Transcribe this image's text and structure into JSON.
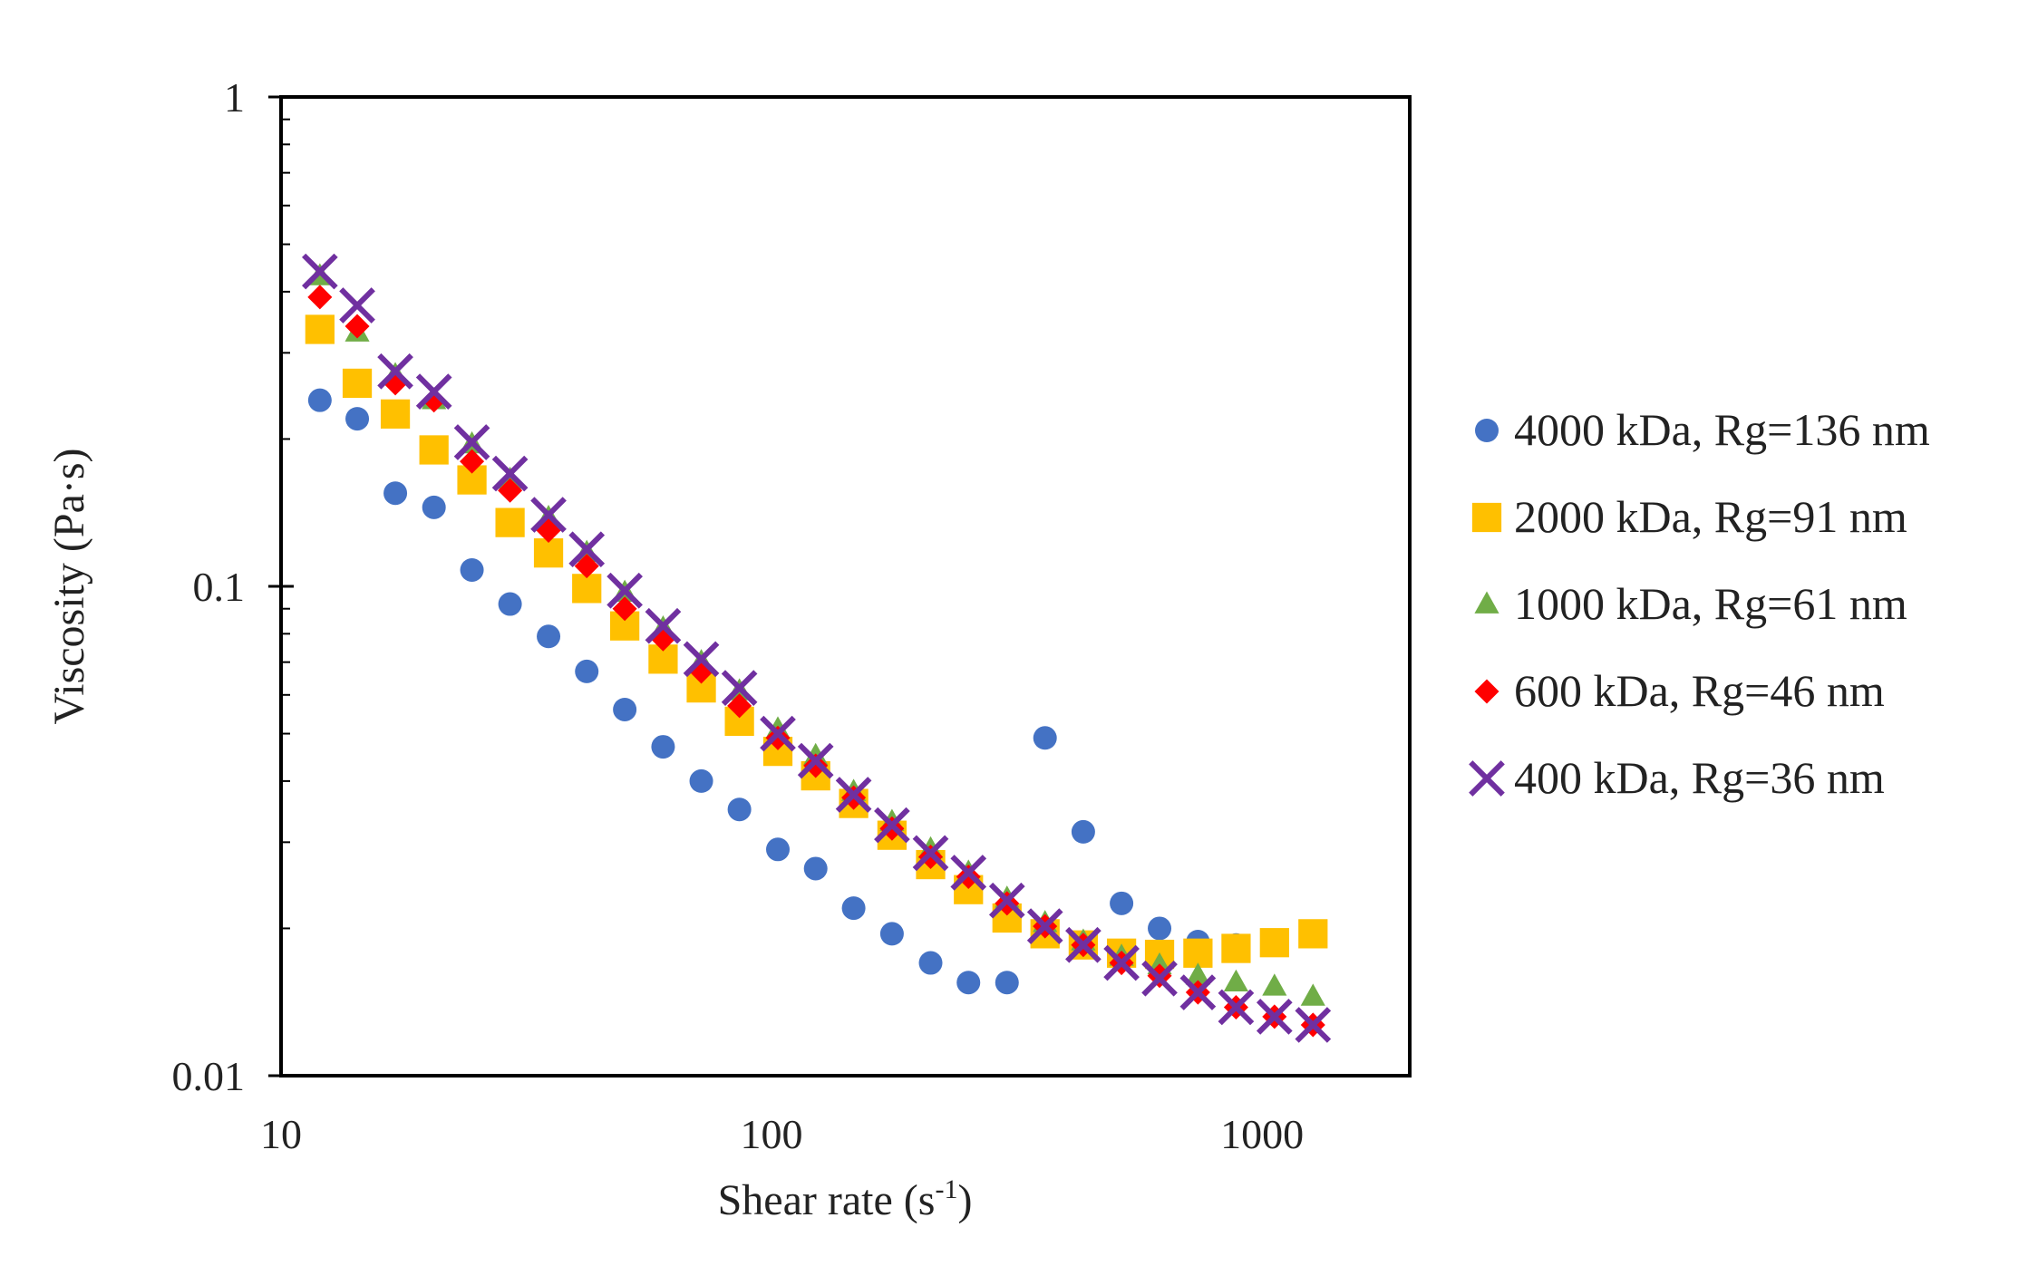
{
  "chart_data": {
    "type": "scatter",
    "title": "",
    "xlabel": "Shear rate (s",
    "xlabel_sup": "-1",
    "xlabel_close": ")",
    "ylabel": "Viscosity (Pa·s)",
    "xscale": "log",
    "yscale": "log",
    "xlim": [
      10,
      2000
    ],
    "ylim": [
      0.01,
      1
    ],
    "xticks": [
      10,
      100,
      1000
    ],
    "xtick_labels": [
      "10",
      "100",
      "1000"
    ],
    "yticks": [
      0.01,
      0.1,
      1
    ],
    "ytick_labels": [
      "0.01",
      "0.1",
      "1"
    ],
    "grid": false,
    "legend_position": "right",
    "x": [
      12,
      14.3,
      17.1,
      20.5,
      24.5,
      29.3,
      35.1,
      42,
      50.2,
      60.1,
      71.9,
      86,
      103,
      123,
      147,
      176,
      211,
      252,
      302,
      361,
      432,
      517,
      618,
      740,
      885,
      1060,
      1270
    ],
    "series": [
      {
        "name": "4000 kDa, Rg=136 nm",
        "color": "#4472C4",
        "marker": "circle",
        "values": [
          0.24,
          0.22,
          0.155,
          0.145,
          0.108,
          0.092,
          0.079,
          0.067,
          0.056,
          0.047,
          0.04,
          0.035,
          0.029,
          0.0265,
          0.022,
          0.0195,
          0.017,
          0.0155,
          0.0155,
          0.049,
          0.0315,
          0.0225,
          0.02,
          0.0188,
          0.0185,
          null,
          null
        ]
      },
      {
        "name": "2000 kDa, Rg=91 nm",
        "color": "#FFC000",
        "marker": "square",
        "values": [
          0.335,
          0.26,
          0.225,
          0.19,
          0.165,
          0.135,
          0.117,
          0.099,
          0.083,
          0.071,
          0.062,
          0.053,
          0.046,
          0.041,
          0.036,
          0.031,
          0.027,
          0.024,
          0.021,
          0.0195,
          0.0185,
          0.0178,
          0.0177,
          0.0178,
          0.0182,
          0.0187,
          0.0195
        ]
      },
      {
        "name": "1000 kDa, Rg=61 nm",
        "color": "#70AD47",
        "marker": "triangle",
        "values": [
          0.43,
          0.33,
          0.27,
          0.24,
          0.195,
          0.165,
          0.138,
          0.117,
          0.097,
          0.082,
          0.07,
          0.061,
          0.051,
          0.045,
          0.038,
          0.033,
          0.029,
          0.026,
          0.023,
          0.0205,
          0.0188,
          0.0175,
          0.0168,
          0.016,
          0.0155,
          0.0152,
          0.0145
        ]
      },
      {
        "name": "600 kDa, Rg=46 nm",
        "color": "#FF0000",
        "marker": "diamond",
        "values": [
          0.39,
          0.34,
          0.26,
          0.24,
          0.18,
          0.157,
          0.13,
          0.11,
          0.09,
          0.078,
          0.067,
          0.057,
          0.049,
          0.043,
          0.037,
          0.032,
          0.028,
          0.0255,
          0.0225,
          0.0202,
          0.0185,
          0.017,
          0.016,
          0.0148,
          0.0138,
          0.0132,
          0.0127
        ]
      },
      {
        "name": "400 kDa, Rg=36 nm",
        "color": "#7030A0",
        "marker": "x",
        "values": [
          0.44,
          0.375,
          0.275,
          0.25,
          0.197,
          0.17,
          0.14,
          0.119,
          0.098,
          0.083,
          0.071,
          0.062,
          0.05,
          0.044,
          0.0375,
          0.0325,
          0.0285,
          0.026,
          0.0228,
          0.0202,
          0.0185,
          0.017,
          0.0158,
          0.0148,
          0.0138,
          0.0132,
          0.0127
        ]
      }
    ]
  }
}
